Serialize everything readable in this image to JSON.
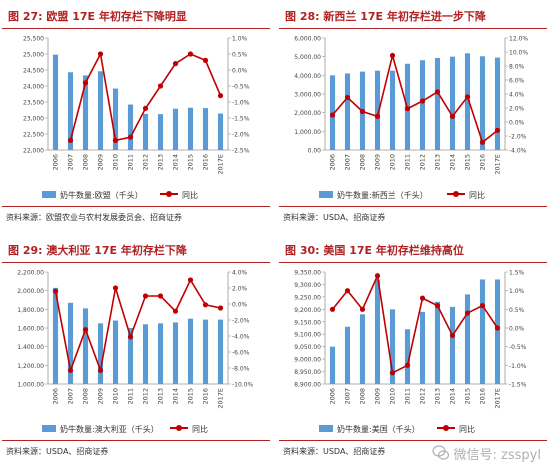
{
  "panels": [
    {
      "title": "图 27: 欧盟 17E 年初存栏下降明显",
      "source": "资料来源：欧盟农业与农村发展委员会、招商证券",
      "legend_bar": "奶牛数量:欧盟（千头）",
      "legend_line": "同比"
    },
    {
      "title": "图 28: 新西兰 17E 年初存栏进一步下降",
      "source": "资料来源：USDA、招商证券",
      "legend_bar": "奶牛数量:新西兰（千头）",
      "legend_line": "同比"
    },
    {
      "title": "图 29: 澳大利亚 17E 年初存栏下降",
      "source": "资料来源：USDA、招商证券",
      "legend_bar": "奶牛数量:澳大利亚（千头）",
      "legend_line": "同比"
    },
    {
      "title": "图 30: 美国 17E 年初存栏维持高位",
      "source": "资料来源：USDA、招商证券",
      "legend_bar": "奶牛数量:美国（千头）",
      "legend_line": "同比"
    }
  ],
  "watermark": "微信号: zsspyl",
  "colors": {
    "bar": "#5b9bd5",
    "line": "#c00000",
    "title": "#b22222"
  },
  "chart_data": [
    {
      "type": "bar",
      "categories": [
        "2006",
        "2007",
        "2008",
        "2009",
        "2010",
        "2011",
        "2012",
        "2013",
        "2014",
        "2015",
        "2016",
        "2017E"
      ],
      "ylim": [
        22000,
        25500
      ],
      "yticks": [
        "25,500",
        "25,000",
        "24,500",
        "24,000",
        "23,500",
        "23,000",
        "22,500",
        "22,000"
      ],
      "y2lim": [
        -2.5,
        1.0
      ],
      "y2ticks": [
        "1.0%",
        "0.5%",
        "0.0%",
        "-0.5%",
        "-1.0%",
        "-1.5%",
        "-2.0%",
        "-2.5%"
      ],
      "series": [
        {
          "name": "奶牛数量:欧盟（千头）",
          "kind": "bar",
          "axis": "left",
          "values": [
            24980,
            24430,
            24330,
            24460,
            23920,
            23420,
            23130,
            23120,
            23290,
            23320,
            23310,
            23140
          ]
        },
        {
          "name": "同比",
          "kind": "line",
          "axis": "right",
          "values": [
            null,
            -2.2,
            -0.4,
            0.5,
            -2.2,
            -2.1,
            -1.2,
            -0.5,
            0.2,
            0.5,
            0.3,
            -0.8
          ]
        }
      ]
    },
    {
      "type": "bar",
      "categories": [
        "2006",
        "2007",
        "2008",
        "2009",
        "2010",
        "2011",
        "2012",
        "2013",
        "2014",
        "2015",
        "2016",
        "2017E"
      ],
      "ylim": [
        0,
        6000
      ],
      "yticks": [
        "6,000.00",
        "5,000.00",
        "4,000.00",
        "3,000.00",
        "2,000.00",
        "1,000.00",
        "0.00"
      ],
      "y2lim": [
        -4.0,
        12.0
      ],
      "y2ticks": [
        "12.0%",
        "10.0%",
        "8.0%",
        "6.0%",
        "4.0%",
        "2.0%",
        "0.0%",
        "-2.0%",
        "-4.0%"
      ],
      "series": [
        {
          "name": "奶牛数量:新西兰（千头）",
          "kind": "bar",
          "axis": "left",
          "values": [
            4000,
            4100,
            4200,
            4250,
            4250,
            4620,
            4810,
            4930,
            5000,
            5180,
            5020,
            4950
          ]
        },
        {
          "name": "同比",
          "kind": "line",
          "axis": "right",
          "values": [
            1.0,
            3.5,
            1.5,
            0.8,
            9.5,
            1.9,
            3.0,
            4.3,
            0.8,
            3.6,
            -2.9,
            -1.2
          ]
        }
      ]
    },
    {
      "type": "bar",
      "categories": [
        "2006",
        "2007",
        "2008",
        "2009",
        "2010",
        "2011",
        "2012",
        "2013",
        "2014",
        "2015",
        "2016",
        "2017E"
      ],
      "ylim": [
        1000,
        2200
      ],
      "yticks": [
        "2,200.00",
        "2,000.00",
        "1,800.00",
        "1,600.00",
        "1,400.00",
        "1,200.00",
        "1,000.00"
      ],
      "y2lim": [
        -10.0,
        4.0
      ],
      "y2ticks": [
        "4.0%",
        "2.0%",
        "0.0%",
        "-2.0%",
        "-4.0%",
        "-6.0%",
        "-8.0%",
        "-10.0%"
      ],
      "series": [
        {
          "name": "奶牛数量:澳大利亚（千头）",
          "kind": "bar",
          "axis": "left",
          "values": [
            2030,
            1870,
            1810,
            1650,
            1680,
            1600,
            1640,
            1650,
            1660,
            1700,
            1690,
            1690
          ]
        },
        {
          "name": "同比",
          "kind": "line",
          "axis": "right",
          "values": [
            1.6,
            -8.3,
            -3.2,
            -8.3,
            2.0,
            -4.1,
            1.0,
            1.0,
            -0.9,
            3.0,
            -0.1,
            -0.5
          ]
        }
      ]
    },
    {
      "type": "bar",
      "categories": [
        "2006",
        "2007",
        "2008",
        "2009",
        "2010",
        "2011",
        "2012",
        "2013",
        "2014",
        "2015",
        "2016",
        "2017E"
      ],
      "ylim": [
        8900,
        9350
      ],
      "yticks": [
        "9,350.00",
        "9,300.00",
        "9,250.00",
        "9,200.00",
        "9,150.00",
        "9,100.00",
        "9,050.00",
        "9,000.00",
        "8,950.00",
        "8,900.00"
      ],
      "y2lim": [
        -1.5,
        1.5
      ],
      "y2ticks": [
        "1.5%",
        "1.0%",
        "0.5%",
        "0.0%",
        "-0.5%",
        "-1.0%",
        "-1.5%"
      ],
      "series": [
        {
          "name": "奶牛数量:美国（千头）",
          "kind": "bar",
          "axis": "left",
          "values": [
            9050,
            9130,
            9180,
            9320,
            9200,
            9120,
            9190,
            9230,
            9210,
            9260,
            9320,
            9320
          ]
        },
        {
          "name": "同比",
          "kind": "line",
          "axis": "right",
          "values": [
            0.5,
            1.0,
            0.5,
            1.4,
            -1.2,
            -1.0,
            0.8,
            0.6,
            -0.2,
            0.4,
            0.6,
            0.0
          ]
        }
      ]
    }
  ]
}
